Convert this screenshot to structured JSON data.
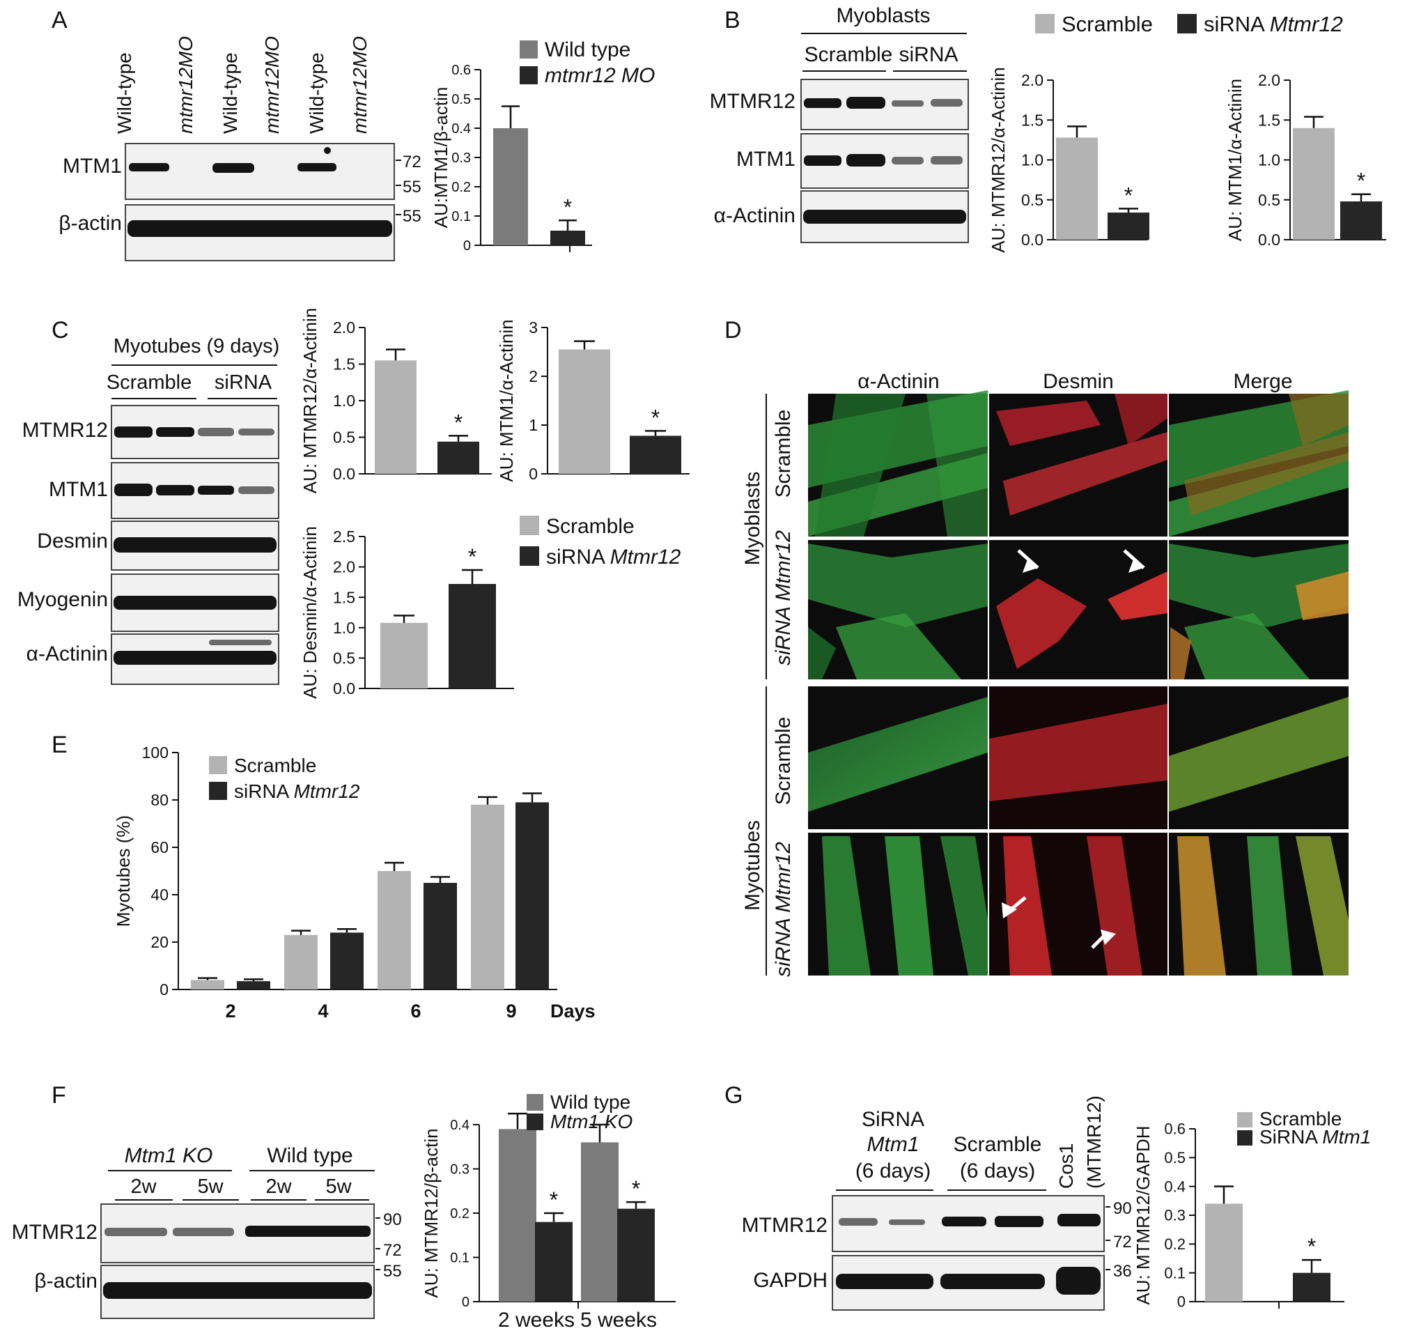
{
  "colors": {
    "gray_dark": "#7b7b7b",
    "gray_light": "#b3b3b3",
    "black_bar": "#262626",
    "micro_bg": "#0c0c0c",
    "green": "#2f8f3a",
    "red": "#c8262a"
  },
  "panels": {
    "A": {
      "letter": "A",
      "lanes": [
        "Wild-type",
        "mtmr12MO",
        "Wild-type",
        "mtmr12MO",
        "Wild-type",
        "mtmr12MO"
      ],
      "rows": [
        "MTM1",
        "β-actin"
      ],
      "markers": [
        "72",
        "55",
        "55"
      ]
    },
    "B": {
      "letter": "B",
      "header": "Myoblasts",
      "groups": [
        "Scramble",
        "siRNA"
      ],
      "rows": [
        "MTMR12",
        "MTM1",
        "α-Actinin"
      ]
    },
    "C": {
      "letter": "C",
      "header": "Myotubes (9 days)",
      "groups": [
        "Scramble",
        "siRNA"
      ],
      "rows": [
        "MTMR12",
        "MTM1",
        "Desmin",
        "Myogenin",
        "α-Actinin"
      ]
    },
    "D": {
      "letter": "D",
      "columns": [
        "α-Actinin",
        "Desmin",
        "Merge"
      ],
      "row_groups": [
        "Myoblasts",
        "Myotubes"
      ],
      "row_conditions": [
        "Scramble",
        "siRNA Mtmr12",
        "Scramble",
        "siRNA Mtmr12"
      ]
    },
    "E": {
      "letter": "E"
    },
    "F": {
      "letter": "F",
      "groups": [
        "Mtm1 KO",
        "Wild type"
      ],
      "timepoints": [
        "2w",
        "5w",
        "2w",
        "5w"
      ],
      "rows": [
        "MTMR12",
        "β-actin"
      ],
      "markers": [
        "90",
        "72",
        "55"
      ]
    },
    "G": {
      "letter": "G",
      "lane_groups": [
        {
          "line1": "SiRNA",
          "line2": "Mtm1",
          "line3": "(6 days)"
        },
        {
          "line1": "Scramble",
          "line2": "(6 days)"
        }
      ],
      "cos_label": "Cos1",
      "cos_sub": "(MTMR12)",
      "rows": [
        "MTMR12",
        "GAPDH"
      ],
      "markers": [
        "90",
        "72",
        "36"
      ]
    }
  },
  "chart_data": [
    {
      "id": "A",
      "type": "bar",
      "ylabel": "AU:MTM1/β-actin",
      "ylim": [
        0,
        0.6
      ],
      "yticks": [
        0,
        0.1,
        0.2,
        0.3,
        0.4,
        0.5,
        0.6
      ],
      "legend": [
        "Wild type",
        "mtmr12 MO"
      ],
      "series": [
        {
          "name": "Wild type",
          "values": [
            0.4
          ],
          "errors": [
            0.075
          ]
        },
        {
          "name": "mtmr12 MO",
          "values": [
            0.05
          ],
          "errors": [
            0.035
          ],
          "sig": [
            "*"
          ]
        }
      ]
    },
    {
      "id": "B1",
      "type": "bar",
      "ylabel": "AU: MTMR12/α-Actinin",
      "ylim": [
        0,
        2.0
      ],
      "yticks": [
        "0.0",
        "0.5",
        "1.0",
        "1.5",
        "2.0"
      ],
      "legend": [
        "Scramble",
        "siRNA Mtmr12"
      ],
      "series": [
        {
          "name": "Scramble",
          "values": [
            1.28
          ],
          "errors": [
            0.14
          ]
        },
        {
          "name": "siRNA Mtmr12",
          "values": [
            0.34
          ],
          "errors": [
            0.05
          ],
          "sig": [
            "*"
          ]
        }
      ]
    },
    {
      "id": "B2",
      "type": "bar",
      "ylabel": "AU: MTM1/α-Actinin",
      "ylim": [
        0,
        2.0
      ],
      "yticks": [
        "0.0",
        "0.5",
        "1.0",
        "1.5",
        "2.0"
      ],
      "series": [
        {
          "name": "Scramble",
          "values": [
            1.4
          ],
          "errors": [
            0.14
          ]
        },
        {
          "name": "siRNA Mtmr12",
          "values": [
            0.48
          ],
          "errors": [
            0.09
          ],
          "sig": [
            "*"
          ]
        }
      ]
    },
    {
      "id": "C1",
      "type": "bar",
      "ylabel": "AU: MTMR12/α-Actinin",
      "ylim": [
        0,
        2.0
      ],
      "yticks": [
        "0.0",
        "0.5",
        "1.0",
        "1.5",
        "2.0"
      ],
      "series": [
        {
          "name": "Scramble",
          "values": [
            1.55
          ],
          "errors": [
            0.15
          ]
        },
        {
          "name": "siRNA Mtmr12",
          "values": [
            0.44
          ],
          "errors": [
            0.08
          ],
          "sig": [
            "*"
          ]
        }
      ]
    },
    {
      "id": "C2",
      "type": "bar",
      "ylabel": "AU: MTM1/α-Actinin",
      "ylim": [
        0,
        3
      ],
      "yticks": [
        "0",
        "1",
        "2",
        "3"
      ],
      "series": [
        {
          "name": "Scramble",
          "values": [
            2.55
          ],
          "errors": [
            0.17
          ]
        },
        {
          "name": "siRNA Mtmr12",
          "values": [
            0.78
          ],
          "errors": [
            0.1
          ],
          "sig": [
            "*"
          ]
        }
      ]
    },
    {
      "id": "C3",
      "type": "bar",
      "ylabel": "AU: Desmin/α-Actinin",
      "ylim": [
        0,
        2.5
      ],
      "yticks": [
        "0.0",
        "0.5",
        "1.0",
        "1.5",
        "2.0",
        "2.5"
      ],
      "legend": [
        "Scramble",
        "siRNA Mtmr12"
      ],
      "series": [
        {
          "name": "Scramble",
          "values": [
            1.08
          ],
          "errors": [
            0.12
          ]
        },
        {
          "name": "siRNA Mtmr12",
          "values": [
            1.72
          ],
          "errors": [
            0.23
          ],
          "sig": [
            "*"
          ]
        }
      ]
    },
    {
      "id": "E",
      "type": "bar",
      "ylabel": "Myotubes (%)",
      "xlabel": "Days",
      "categories": [
        "2",
        "4",
        "6",
        "9"
      ],
      "ylim": [
        0,
        100
      ],
      "yticks": [
        "0",
        "20",
        "40",
        "60",
        "80",
        "100"
      ],
      "legend": [
        "Scramble",
        "siRNA Mtmr12"
      ],
      "series": [
        {
          "name": "Scramble",
          "values": [
            4,
            23,
            50,
            78
          ],
          "errors": [
            0.8,
            1.8,
            3.5,
            3.2
          ]
        },
        {
          "name": "siRNA Mtmr12",
          "values": [
            3.5,
            24,
            45,
            79
          ],
          "errors": [
            0.8,
            1.5,
            2.5,
            3.8
          ]
        }
      ]
    },
    {
      "id": "F",
      "type": "bar",
      "ylabel": "AU: MTMR12/β-actin",
      "categories": [
        "2 weeks",
        "5 weeks"
      ],
      "ylim": [
        0,
        0.4
      ],
      "yticks": [
        "0",
        "0.1",
        "0.2",
        "0.3",
        "0.4"
      ],
      "legend": [
        "Wild type",
        "Mtm1 KO"
      ],
      "series": [
        {
          "name": "Wild type",
          "values": [
            0.39,
            0.36
          ],
          "errors": [
            0.035,
            0.04
          ]
        },
        {
          "name": "Mtm1 KO",
          "values": [
            0.18,
            0.21
          ],
          "errors": [
            0.02,
            0.015
          ],
          "sig": [
            "*",
            "*"
          ]
        }
      ]
    },
    {
      "id": "G",
      "type": "bar",
      "ylabel": "AU: MTMR12/GAPDH",
      "ylim": [
        0,
        0.6
      ],
      "yticks": [
        "0",
        "0.1",
        "0.2",
        "0.3",
        "0.4",
        "0.5",
        "0.6"
      ],
      "legend": [
        "Scramble",
        "SiRNA Mtm1"
      ],
      "series": [
        {
          "name": "Scramble",
          "values": [
            0.34
          ],
          "errors": [
            0.06
          ]
        },
        {
          "name": "SiRNA Mtm1",
          "values": [
            0.1
          ],
          "errors": [
            0.045
          ],
          "sig": [
            "*"
          ]
        }
      ]
    }
  ]
}
